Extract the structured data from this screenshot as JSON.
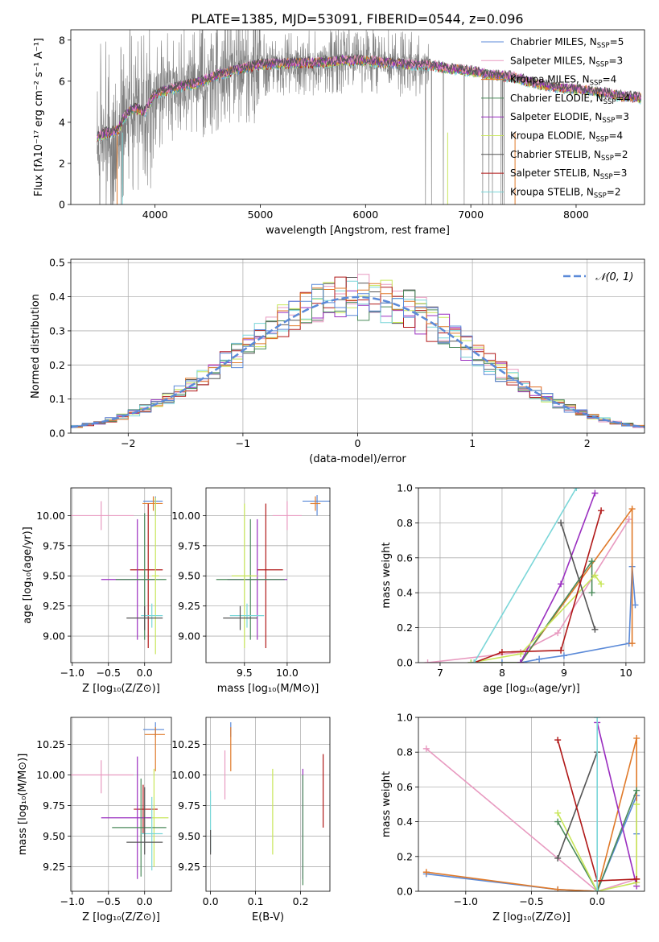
{
  "figure_title": "PLATE=1385, MJD=53091, FIBERID=0544, z=0.096",
  "colors": {
    "chabrier_miles": "#5b8ad8",
    "salpeter_miles": "#e8893d",
    "kroupa_miles": "#e07a2a",
    "chabrier_elodie": "#4a8a5a",
    "salpeter_elodie": "#9a2fc0",
    "kroupa_elodie": "#c8e65a",
    "chabrier_stelib": "#555555",
    "salpeter_stelib": "#b01818",
    "kroupa_stelib": "#7ad6d8",
    "pink": "#e89ac0",
    "data_gray": "#808080",
    "gaussian": "#5b8ad8"
  },
  "chart_data": [
    {
      "id": "spectrum",
      "type": "line",
      "xlabel": "wavelength [Angstrom, rest frame]",
      "ylabel": "Flux [f_λ 10^-17 erg cm^-2 s^-1 A^-1]",
      "xlim": [
        3200,
        8650
      ],
      "ylim": [
        0,
        8.5
      ],
      "xticks": [
        4000,
        5000,
        6000,
        7000,
        8000
      ],
      "yticks": [
        0,
        2,
        4,
        6,
        8
      ],
      "grid": false,
      "legend_position": "upper-right",
      "legend": [
        {
          "label": "Chabrier MILES, N_SSP=5",
          "color_key": "chabrier_miles"
        },
        {
          "label": "Salpeter MILES, N_SSP=3",
          "color_key": "pink"
        },
        {
          "label": "Kroupa MILES, N_SSP=4",
          "color_key": "kroupa_miles"
        },
        {
          "label": "Chabrier ELODIE, N_SSP=4",
          "color_key": "chabrier_elodie"
        },
        {
          "label": "Salpeter ELODIE, N_SSP=3",
          "color_key": "salpeter_elodie"
        },
        {
          "label": "Kroupa ELODIE, N_SSP=4",
          "color_key": "kroupa_elodie"
        },
        {
          "label": "Chabrier STELIB, N_SSP=2",
          "color_key": "chabrier_stelib"
        },
        {
          "label": "Salpeter STELIB, N_SSP=3",
          "color_key": "salpeter_stelib"
        },
        {
          "label": "Kroupa STELIB, N_SSP=2",
          "color_key": "kroupa_stelib"
        }
      ],
      "continuum": [
        [
          3450,
          3.3
        ],
        [
          3550,
          3.5
        ],
        [
          3650,
          3.6
        ],
        [
          3700,
          4.2
        ],
        [
          3800,
          4.7
        ],
        [
          3900,
          4.5
        ],
        [
          4000,
          5.4
        ],
        [
          4200,
          5.7
        ],
        [
          4400,
          5.9
        ],
        [
          4600,
          6.3
        ],
        [
          4800,
          6.6
        ],
        [
          5000,
          6.8
        ],
        [
          5200,
          6.85
        ],
        [
          5400,
          6.9
        ],
        [
          5600,
          6.9
        ],
        [
          5800,
          7.0
        ],
        [
          6000,
          7.0
        ],
        [
          6200,
          6.9
        ],
        [
          6400,
          6.8
        ],
        [
          6600,
          6.8
        ],
        [
          6800,
          6.6
        ],
        [
          7000,
          6.5
        ],
        [
          7200,
          6.3
        ],
        [
          7400,
          6.2
        ],
        [
          7600,
          5.9
        ],
        [
          7800,
          5.7
        ],
        [
          8000,
          5.6
        ],
        [
          8200,
          5.5
        ],
        [
          8400,
          5.3
        ],
        [
          8600,
          5.2
        ]
      ]
    },
    {
      "id": "residuals",
      "type": "histogram",
      "xlabel": "(data-model)/error",
      "ylabel": "Normed distribution",
      "xlim": [
        -2.5,
        2.5
      ],
      "ylim": [
        0,
        0.51
      ],
      "xticks": [
        -2,
        -1,
        0,
        1,
        2
      ],
      "yticks": [
        0.0,
        0.1,
        0.2,
        0.3,
        0.4,
        0.5
      ],
      "grid": true,
      "legend_position": "upper-right",
      "legend": [
        {
          "label": "𝒩(0, 1)",
          "color_key": "gaussian"
        }
      ],
      "bin_width": 0.1
    },
    {
      "id": "age_vs_Z",
      "type": "errorbar",
      "xlabel": "Z [log10(Z/Z⊙)]",
      "ylabel": "age  [log10(age/yr)]",
      "xlim": [
        -1.02,
        0.37
      ],
      "ylim": [
        8.78,
        10.23
      ],
      "xticks": [
        -1.0,
        -0.5,
        0.0
      ],
      "yticks": [
        9.0,
        9.25,
        9.5,
        9.75,
        10.0
      ],
      "grid": true,
      "points": [
        {
          "color_key": "chabrier_miles",
          "x": 0.15,
          "xerr": [
            0.17,
            0.1
          ],
          "y": 10.12,
          "yerr": [
            0.12,
            0.04
          ]
        },
        {
          "color_key": "kroupa_miles",
          "x": 0.12,
          "xerr": [
            0.15,
            0.13
          ],
          "y": 10.1,
          "yerr": [
            0.06,
            0.06
          ]
        },
        {
          "color_key": "pink",
          "x": -0.6,
          "xerr": [
            0.5,
            0.45
          ],
          "y": 10.0,
          "yerr": [
            0.12,
            0.12
          ]
        },
        {
          "color_key": "salpeter_stelib",
          "x": 0.05,
          "xerr": [
            0.25,
            0.2
          ],
          "y": 9.55,
          "yerr": [
            0.65,
            0.55
          ]
        },
        {
          "color_key": "salpeter_elodie",
          "x": -0.1,
          "xerr": [
            0.5,
            0.25
          ],
          "y": 9.47,
          "yerr": [
            0.5,
            0.5
          ]
        },
        {
          "color_key": "chabrier_elodie",
          "x": 0.0,
          "xerr": [
            0.4,
            0.3
          ],
          "y": 9.47,
          "yerr": [
            0.5,
            0.55
          ]
        },
        {
          "color_key": "kroupa_elodie",
          "x": 0.15,
          "xerr": [
            0.05,
            0.05
          ],
          "y": 9.5,
          "yerr": [
            0.65,
            0.65
          ]
        },
        {
          "color_key": "kroupa_stelib",
          "x": 0.1,
          "xerr": [
            0.15,
            0.15
          ],
          "y": 9.17,
          "yerr": [
            0.1,
            0.1
          ]
        },
        {
          "color_key": "chabrier_stelib",
          "x": 0.0,
          "xerr": [
            0.25,
            0.25
          ],
          "y": 9.15,
          "yerr": [
            0.1,
            0.1
          ]
        }
      ]
    },
    {
      "id": "age_vs_mass",
      "type": "errorbar",
      "xlabel": "mass [log10(M/M⊙)]",
      "ylabel": "",
      "xlim": [
        9.05,
        10.5
      ],
      "ylim": [
        8.78,
        10.23
      ],
      "xticks": [
        9.5,
        10.0
      ],
      "yticks": [
        9.0,
        9.25,
        9.5,
        9.75,
        10.0
      ],
      "grid": true,
      "points": [
        {
          "color_key": "chabrier_miles",
          "x": 10.35,
          "xerr": [
            0.17,
            0.17
          ],
          "y": 10.12,
          "yerr": [
            0.12,
            0.05
          ]
        },
        {
          "color_key": "kroupa_miles",
          "x": 10.33,
          "xerr": [
            0.06,
            0.06
          ],
          "y": 10.1,
          "yerr": [
            0.06,
            0.06
          ]
        },
        {
          "color_key": "pink",
          "x": 10.0,
          "xerr": [
            0.17,
            0.17
          ],
          "y": 10.0,
          "yerr": [
            0.12,
            0.12
          ]
        },
        {
          "color_key": "salpeter_stelib",
          "x": 9.75,
          "xerr": [
            0.1,
            0.2
          ],
          "y": 9.55,
          "yerr": [
            0.65,
            0.55
          ]
        },
        {
          "color_key": "salpeter_elodie",
          "x": 9.65,
          "xerr": [
            0.35,
            0.35
          ],
          "y": 9.47,
          "yerr": [
            0.5,
            0.5
          ]
        },
        {
          "color_key": "chabrier_elodie",
          "x": 9.57,
          "xerr": [
            0.4,
            0.4
          ],
          "y": 9.47,
          "yerr": [
            0.5,
            0.5
          ]
        },
        {
          "color_key": "kroupa_elodie",
          "x": 9.5,
          "xerr": [
            0.15,
            0.15
          ],
          "y": 9.5,
          "yerr": [
            0.6,
            0.6
          ]
        },
        {
          "color_key": "kroupa_stelib",
          "x": 9.53,
          "xerr": [
            0.2,
            0.2
          ],
          "y": 9.17,
          "yerr": [
            0.1,
            0.1
          ]
        },
        {
          "color_key": "chabrier_stelib",
          "x": 9.45,
          "xerr": [
            0.2,
            0.2
          ],
          "y": 9.15,
          "yerr": [
            0.1,
            0.1
          ]
        }
      ]
    },
    {
      "id": "weight_vs_age",
      "type": "line",
      "xlabel": "age  [log10(age/yr)]",
      "ylabel": "mass weight",
      "xlim": [
        6.65,
        10.3
      ],
      "ylim": [
        0,
        1.0
      ],
      "xticks": [
        7,
        8,
        9,
        10
      ],
      "yticks": [
        0.0,
        0.2,
        0.4,
        0.6,
        0.8,
        1.0
      ],
      "grid": true,
      "series": [
        {
          "color_key": "chabrier_miles",
          "x": [
            7.5,
            8.0,
            8.3,
            8.6,
            9.0,
            10.05,
            10.1,
            10.15
          ],
          "y": [
            0.0,
            0.0,
            0.0,
            0.02,
            0.04,
            0.11,
            0.55,
            0.33
          ]
        },
        {
          "color_key": "pink",
          "x": [
            6.8,
            8.3,
            8.9,
            10.05
          ],
          "y": [
            0.0,
            0.06,
            0.17,
            0.82
          ]
        },
        {
          "color_key": "kroupa_miles",
          "x": [
            7.55,
            8.3,
            10.1,
            10.1
          ],
          "y": [
            0.0,
            0.0,
            0.88,
            0.11
          ]
        },
        {
          "color_key": "chabrier_elodie",
          "x": [
            7.5,
            8.3,
            9.45,
            9.45
          ],
          "y": [
            0.0,
            0.0,
            0.58,
            0.4
          ]
        },
        {
          "color_key": "salpeter_elodie",
          "x": [
            8.3,
            8.95,
            9.5
          ],
          "y": [
            0.0,
            0.45,
            0.97
          ]
        },
        {
          "color_key": "kroupa_elodie",
          "x": [
            7.5,
            8.3,
            9.5,
            9.6
          ],
          "y": [
            0.0,
            0.05,
            0.5,
            0.45
          ]
        },
        {
          "color_key": "chabrier_stelib",
          "x": [
            8.95,
            9.5
          ],
          "y": [
            0.8,
            0.19
          ]
        },
        {
          "color_key": "salpeter_stelib",
          "x": [
            7.55,
            8.0,
            8.95,
            9.6
          ],
          "y": [
            0.0,
            0.06,
            0.07,
            0.87
          ]
        },
        {
          "color_key": "kroupa_stelib",
          "x": [
            7.55,
            9.2
          ],
          "y": [
            0.0,
            1.0
          ]
        }
      ]
    },
    {
      "id": "mass_vs_Z",
      "type": "errorbar",
      "xlabel": "Z [log10(Z/Z⊙)]",
      "ylabel": "mass [log10(M/M⊙)]",
      "xlim": [
        -1.02,
        0.37
      ],
      "ylim": [
        9.05,
        10.47
      ],
      "xticks": [
        -1.0,
        -0.5,
        0.0
      ],
      "yticks": [
        9.25,
        9.5,
        9.75,
        10.0,
        10.25
      ],
      "grid": true,
      "points": [
        {
          "color_key": "chabrier_miles",
          "x": 0.15,
          "xerr": [
            0.17,
            0.12
          ],
          "y": 10.37,
          "yerr": [
            0.06,
            0.06
          ]
        },
        {
          "color_key": "kroupa_miles",
          "x": 0.15,
          "xerr": [
            0.15,
            0.13
          ],
          "y": 10.33,
          "yerr": [
            0.3,
            0.06
          ]
        },
        {
          "color_key": "pink",
          "x": -0.6,
          "xerr": [
            0.5,
            0.45
          ],
          "y": 10.0,
          "yerr": [
            0.15,
            0.12
          ]
        },
        {
          "color_key": "salpeter_stelib",
          "x": -0.02,
          "xerr": [
            0.13,
            0.2
          ],
          "y": 9.72,
          "yerr": [
            0.2,
            0.2
          ]
        },
        {
          "color_key": "kroupa_elodie",
          "x": 0.13,
          "xerr": [
            0.1,
            0.2
          ],
          "y": 9.65,
          "yerr": [
            0.4,
            0.4
          ]
        },
        {
          "color_key": "salpeter_elodie",
          "x": -0.1,
          "xerr": [
            0.5,
            0.2
          ],
          "y": 9.65,
          "yerr": [
            0.5,
            0.5
          ]
        },
        {
          "color_key": "chabrier_elodie",
          "x": -0.05,
          "xerr": [
            0.4,
            0.35
          ],
          "y": 9.57,
          "yerr": [
            0.4,
            0.4
          ]
        },
        {
          "color_key": "kroupa_stelib",
          "x": 0.1,
          "xerr": [
            0.15,
            0.15
          ],
          "y": 9.52,
          "yerr": [
            0.3,
            0.3
          ]
        },
        {
          "color_key": "chabrier_stelib",
          "x": 0.0,
          "xerr": [
            0.25,
            0.25
          ],
          "y": 9.45,
          "yerr": [
            0.1,
            0.45
          ]
        }
      ]
    },
    {
      "id": "mass_vs_EBV",
      "type": "errorbar",
      "xlabel": "E(B-V)",
      "ylabel": "",
      "xlim": [
        -0.01,
        0.265
      ],
      "ylim": [
        9.05,
        10.47
      ],
      "xticks": [
        0.0,
        0.1,
        0.2
      ],
      "yticks": [
        9.25,
        9.5,
        9.75,
        10.0,
        10.25
      ],
      "grid": true,
      "points": [
        {
          "color_key": "chabrier_miles",
          "x": 0.045,
          "y": 10.37,
          "yerr": [
            0.06,
            0.06
          ]
        },
        {
          "color_key": "kroupa_miles",
          "x": 0.045,
          "y": 10.33,
          "yerr": [
            0.3,
            0.06
          ]
        },
        {
          "color_key": "pink",
          "x": 0.032,
          "y": 10.0,
          "yerr": [
            0.2,
            0.2
          ]
        },
        {
          "color_key": "salpeter_stelib",
          "x": 0.25,
          "y": 9.87,
          "yerr": [
            0.3,
            0.3
          ]
        },
        {
          "color_key": "kroupa_elodie",
          "x": 0.138,
          "y": 9.7,
          "yerr": [
            0.35,
            0.35
          ]
        },
        {
          "color_key": "salpeter_elodie",
          "x": 0.205,
          "y": 9.6,
          "yerr": [
            0.45,
            0.45
          ]
        },
        {
          "color_key": "chabrier_elodie",
          "x": 0.205,
          "y": 9.55,
          "yerr": [
            0.45,
            0.45
          ]
        },
        {
          "color_key": "kroupa_stelib",
          "x": 0.0,
          "y": 9.62,
          "yerr": [
            0.25,
            0.25
          ]
        },
        {
          "color_key": "chabrier_stelib",
          "x": 0.0,
          "y": 9.45,
          "yerr": [
            0.1,
            0.1
          ]
        }
      ]
    },
    {
      "id": "weight_vs_Z",
      "type": "line",
      "xlabel": "Z [log10(Z/Z⊙)]",
      "ylabel": "mass weight",
      "xlim": [
        -1.36,
        0.36
      ],
      "ylim": [
        0,
        1.0
      ],
      "xticks": [
        -1.0,
        -0.5,
        0.0
      ],
      "yticks": [
        0.0,
        0.2,
        0.4,
        0.6,
        0.8,
        1.0
      ],
      "grid": true,
      "series": [
        {
          "color_key": "chabrier_miles",
          "x": [
            -1.3,
            -0.3,
            0.0,
            0.3,
            0.3
          ],
          "y": [
            0.1,
            0.01,
            0.0,
            0.55,
            0.33
          ]
        },
        {
          "color_key": "pink",
          "x": [
            -1.3,
            0.0,
            0.3
          ],
          "y": [
            0.82,
            0.0,
            0.07
          ]
        },
        {
          "color_key": "kroupa_miles",
          "x": [
            -1.3,
            -0.3,
            0.0,
            0.3,
            0.3
          ],
          "y": [
            0.11,
            0.01,
            0.0,
            0.88,
            0.07
          ]
        },
        {
          "color_key": "chabrier_elodie",
          "x": [
            -0.3,
            0.0,
            0.3
          ],
          "y": [
            0.4,
            0.0,
            0.58
          ]
        },
        {
          "color_key": "salpeter_elodie",
          "x": [
            0.0,
            0.3
          ],
          "y": [
            0.97,
            0.03
          ]
        },
        {
          "color_key": "kroupa_elodie",
          "x": [
            -0.3,
            0.0,
            0.3,
            0.3
          ],
          "y": [
            0.45,
            0.0,
            0.05,
            0.5
          ]
        },
        {
          "color_key": "chabrier_stelib",
          "x": [
            -0.3,
            0.0
          ],
          "y": [
            0.19,
            0.8
          ]
        },
        {
          "color_key": "salpeter_stelib",
          "x": [
            -0.3,
            0.0,
            0.3
          ],
          "y": [
            0.87,
            0.06,
            0.07
          ]
        },
        {
          "color_key": "kroupa_stelib",
          "x": [
            0.0,
            0.0
          ],
          "y": [
            0.0,
            1.0
          ]
        }
      ]
    }
  ]
}
